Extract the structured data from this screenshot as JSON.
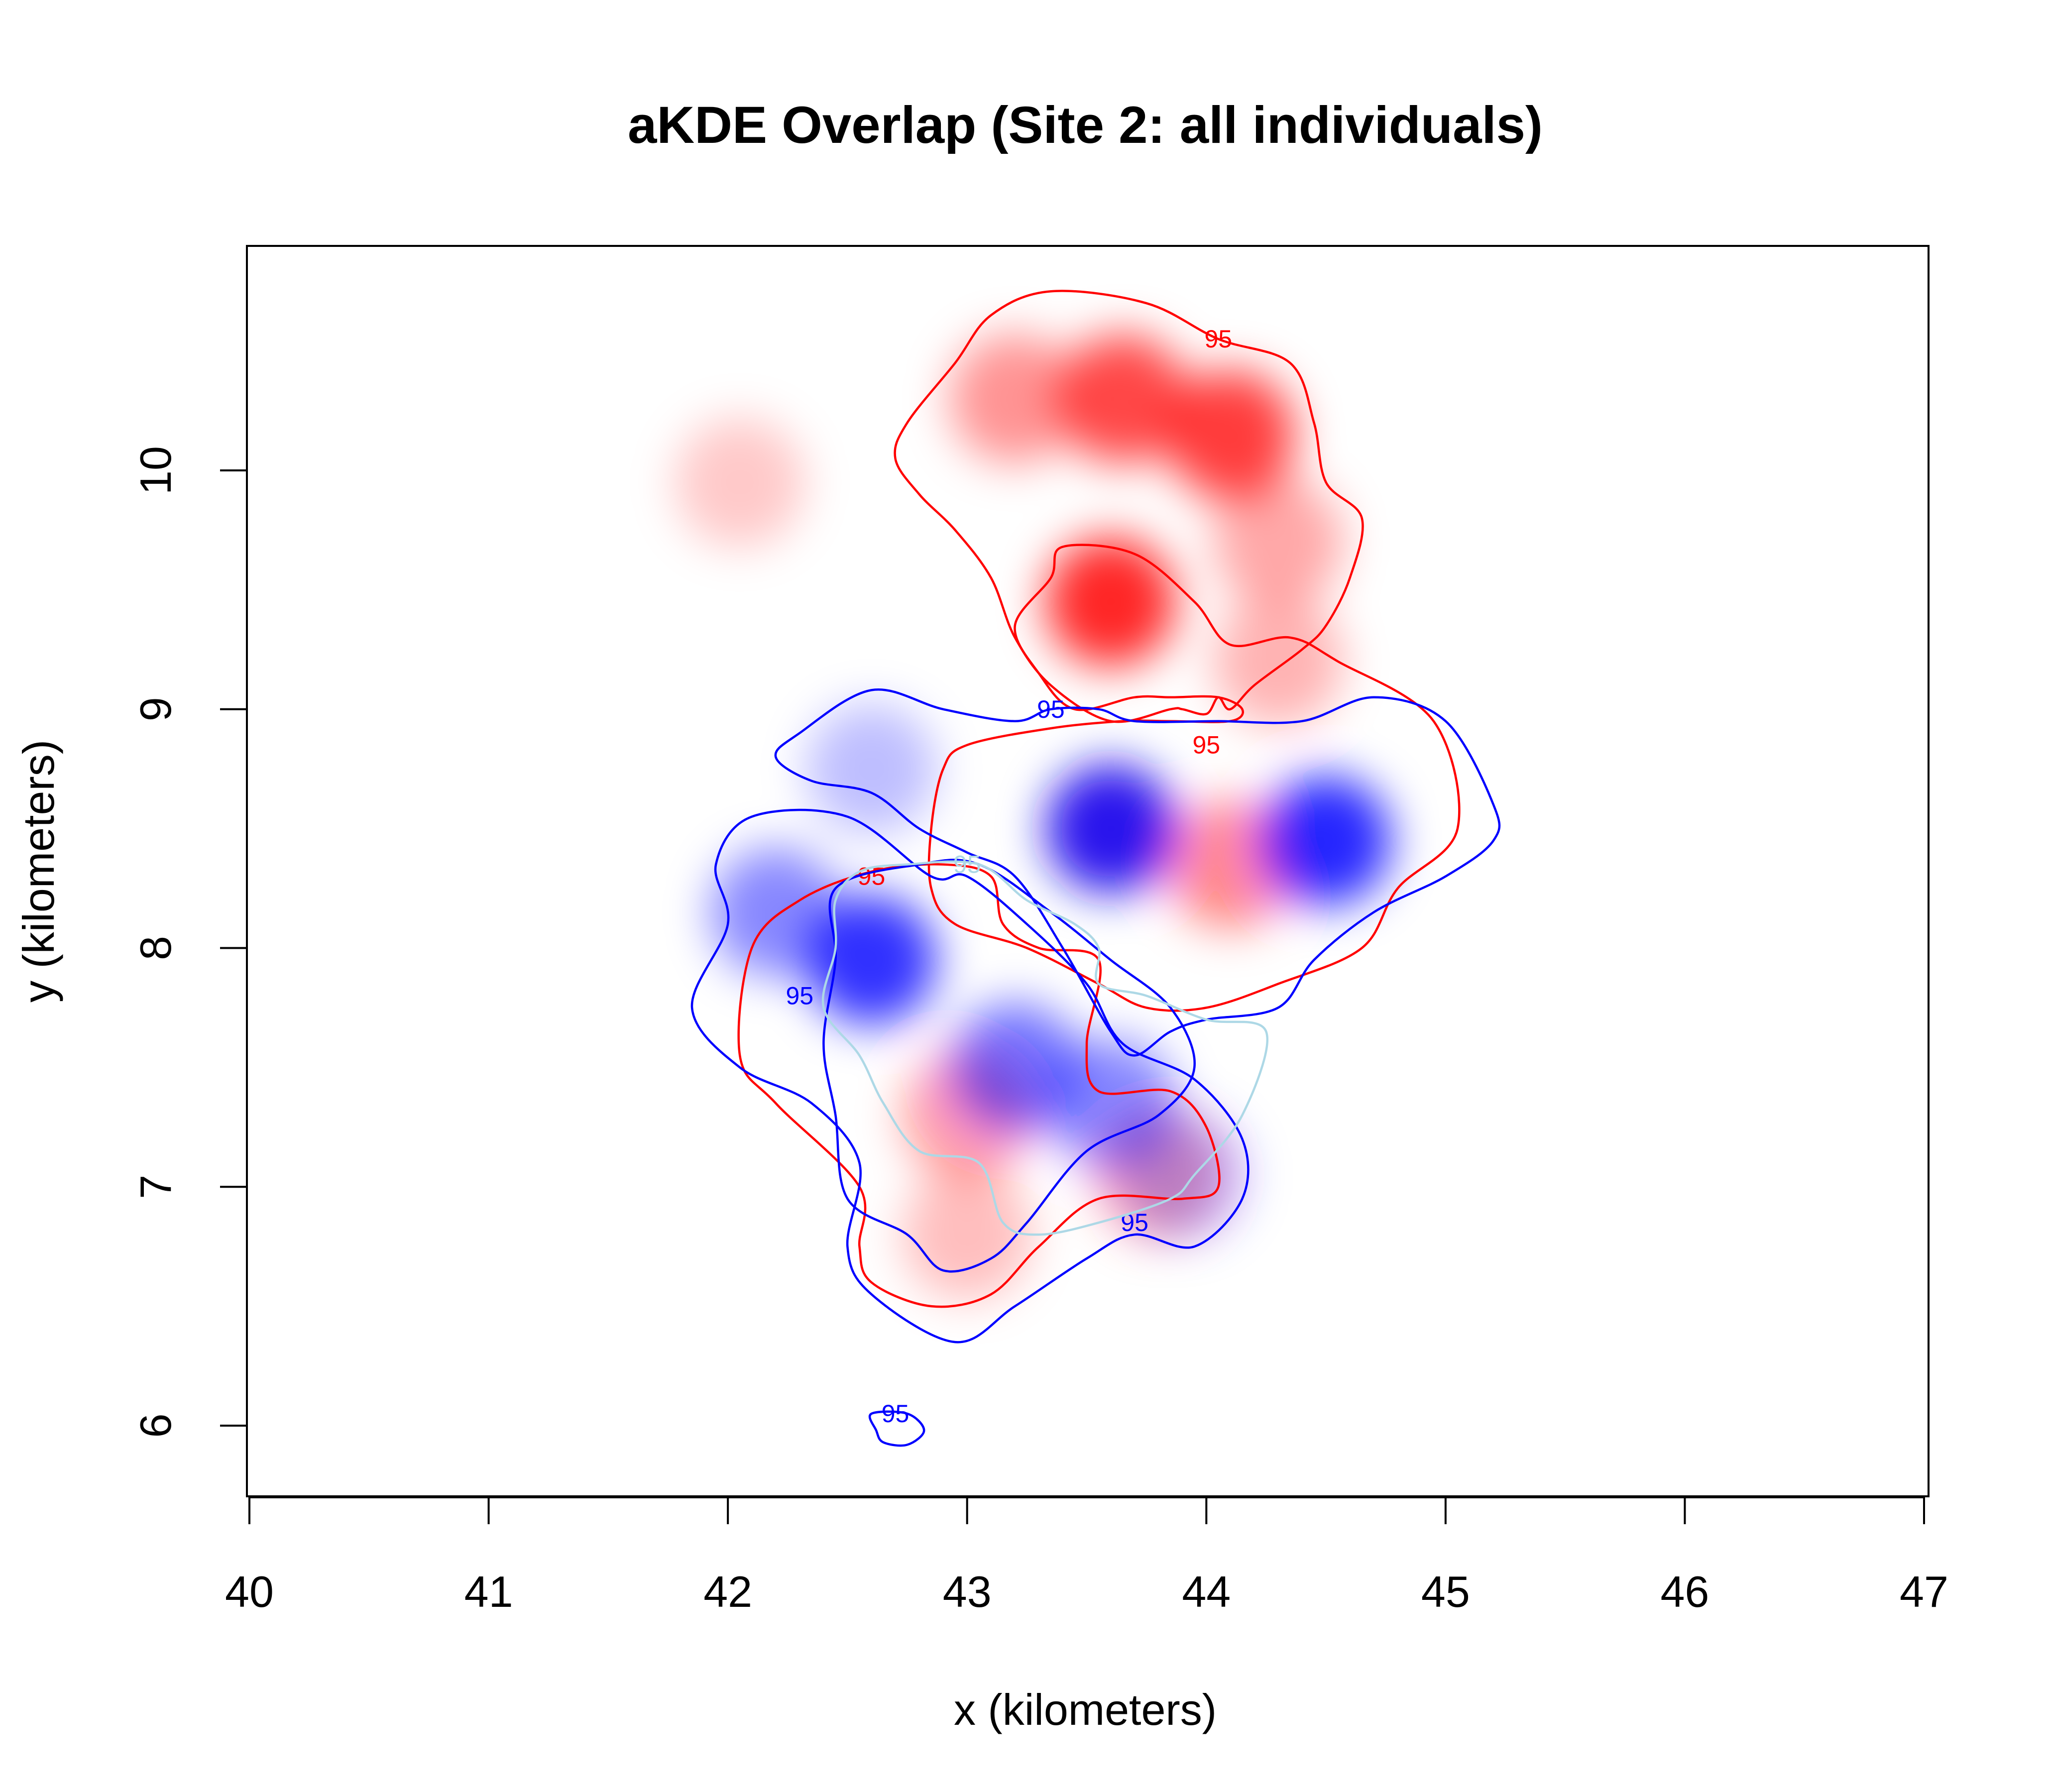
{
  "chart_data": {
    "type": "heatmap",
    "title": "aKDE Overlap (Site 2: all individuals)",
    "xlabel": "x (kilometers)",
    "ylabel": "y (kilometers)",
    "xlim": [
      40,
      47
    ],
    "ylim": [
      5.7,
      10.9
    ],
    "xticks": [
      40,
      41,
      42,
      43,
      44,
      45,
      46,
      47
    ],
    "yticks": [
      6,
      7,
      8,
      9,
      10
    ],
    "grid": false,
    "legend": "none",
    "colors": {
      "red": "#ff0000",
      "blue": "#0000ff",
      "lightblue": "#add8e6"
    },
    "density_blobs": [
      {
        "color": "red",
        "x": 43.65,
        "y": 10.3,
        "strength": 0.85
      },
      {
        "color": "red",
        "x": 44.1,
        "y": 10.15,
        "strength": 0.9
      },
      {
        "color": "red",
        "x": 43.2,
        "y": 10.3,
        "strength": 0.5
      },
      {
        "color": "red",
        "x": 43.6,
        "y": 9.45,
        "strength": 1.0
      },
      {
        "color": "red",
        "x": 42.05,
        "y": 9.95,
        "strength": 0.25
      },
      {
        "color": "red",
        "x": 44.3,
        "y": 9.7,
        "strength": 0.4
      },
      {
        "color": "red",
        "x": 44.3,
        "y": 9.2,
        "strength": 0.35
      },
      {
        "color": "red",
        "x": 43.6,
        "y": 8.5,
        "strength": 0.55
      },
      {
        "color": "red",
        "x": 44.1,
        "y": 8.35,
        "strength": 0.55
      },
      {
        "color": "red",
        "x": 43.0,
        "y": 7.3,
        "strength": 0.45
      },
      {
        "color": "red",
        "x": 43.8,
        "y": 7.05,
        "strength": 0.4
      },
      {
        "color": "red",
        "x": 43.0,
        "y": 6.8,
        "strength": 0.3
      },
      {
        "color": "blue",
        "x": 43.6,
        "y": 8.5,
        "strength": 1.0
      },
      {
        "color": "blue",
        "x": 44.5,
        "y": 8.45,
        "strength": 1.0
      },
      {
        "color": "blue",
        "x": 42.6,
        "y": 7.95,
        "strength": 0.95
      },
      {
        "color": "blue",
        "x": 42.2,
        "y": 8.15,
        "strength": 0.55
      },
      {
        "color": "blue",
        "x": 43.2,
        "y": 7.5,
        "strength": 0.65
      },
      {
        "color": "blue",
        "x": 43.6,
        "y": 7.35,
        "strength": 0.55
      },
      {
        "color": "blue",
        "x": 42.6,
        "y": 8.75,
        "strength": 0.3
      },
      {
        "color": "blue",
        "x": 43.9,
        "y": 7.05,
        "strength": 0.3
      }
    ],
    "contours": [
      {
        "color": "red",
        "label": "95",
        "label_at": [
          44.05,
          10.55
        ],
        "points": [
          [
            43.35,
            10.75
          ],
          [
            43.75,
            10.7
          ],
          [
            44.05,
            10.55
          ],
          [
            44.35,
            10.45
          ],
          [
            44.45,
            10.2
          ],
          [
            44.5,
            9.95
          ],
          [
            44.65,
            9.8
          ],
          [
            44.6,
            9.55
          ],
          [
            44.5,
            9.35
          ],
          [
            44.4,
            9.25
          ],
          [
            44.2,
            9.1
          ],
          [
            44.1,
            9.0
          ],
          [
            44.05,
            9.05
          ],
          [
            44.0,
            8.98
          ],
          [
            43.9,
            9.0
          ],
          [
            43.85,
            9.0
          ],
          [
            43.6,
            8.95
          ],
          [
            43.35,
            9.1
          ],
          [
            43.2,
            9.3
          ],
          [
            43.1,
            9.55
          ],
          [
            42.95,
            9.75
          ],
          [
            42.8,
            9.9
          ],
          [
            42.7,
            10.05
          ],
          [
            42.75,
            10.2
          ],
          [
            42.95,
            10.45
          ],
          [
            43.1,
            10.65
          ]
        ]
      },
      {
        "color": "red",
        "label": "95",
        "label_at": [
          44.0,
          8.85
        ],
        "points": [
          [
            43.35,
            9.55
          ],
          [
            43.4,
            9.68
          ],
          [
            43.7,
            9.65
          ],
          [
            43.95,
            9.45
          ],
          [
            44.1,
            9.27
          ],
          [
            44.35,
            9.3
          ],
          [
            44.55,
            9.2
          ],
          [
            44.95,
            8.95
          ],
          [
            45.05,
            8.5
          ],
          [
            44.8,
            8.25
          ],
          [
            44.65,
            8.0
          ],
          [
            44.3,
            7.85
          ],
          [
            44.0,
            7.75
          ],
          [
            43.75,
            7.75
          ],
          [
            43.55,
            7.85
          ],
          [
            43.25,
            8.0
          ],
          [
            42.95,
            8.1
          ],
          [
            42.85,
            8.25
          ],
          [
            42.85,
            8.5
          ],
          [
            42.9,
            8.75
          ],
          [
            43.0,
            8.85
          ],
          [
            43.35,
            8.92
          ],
          [
            43.65,
            8.95
          ],
          [
            43.85,
            8.95
          ],
          [
            44.1,
            8.95
          ],
          [
            44.15,
            9.0
          ],
          [
            44.05,
            9.05
          ],
          [
            43.85,
            9.05
          ],
          [
            43.7,
            9.05
          ],
          [
            43.45,
            9.0
          ],
          [
            43.3,
            9.15
          ],
          [
            43.2,
            9.35
          ]
        ]
      },
      {
        "color": "red",
        "label": "95",
        "label_at": [
          42.6,
          8.3
        ],
        "points": [
          [
            42.6,
            8.32
          ],
          [
            42.9,
            8.35
          ],
          [
            43.1,
            8.3
          ],
          [
            43.15,
            8.1
          ],
          [
            43.3,
            8.0
          ],
          [
            43.55,
            7.95
          ],
          [
            43.5,
            7.6
          ],
          [
            43.55,
            7.4
          ],
          [
            43.85,
            7.4
          ],
          [
            44.0,
            7.25
          ],
          [
            44.05,
            7.0
          ],
          [
            43.9,
            6.95
          ],
          [
            43.55,
            6.95
          ],
          [
            43.3,
            6.75
          ],
          [
            43.1,
            6.55
          ],
          [
            42.85,
            6.5
          ],
          [
            42.6,
            6.6
          ],
          [
            42.55,
            6.75
          ],
          [
            42.55,
            7.0
          ],
          [
            42.2,
            7.35
          ],
          [
            42.05,
            7.55
          ],
          [
            42.1,
            8.0
          ],
          [
            42.3,
            8.2
          ]
        ]
      },
      {
        "color": "blue",
        "label": "95",
        "label_at": [
          43.35,
          9.0
        ],
        "points": [
          [
            42.3,
            8.9
          ],
          [
            42.6,
            9.08
          ],
          [
            42.9,
            9.0
          ],
          [
            43.2,
            8.95
          ],
          [
            43.35,
            9.0
          ],
          [
            43.55,
            9.0
          ],
          [
            43.7,
            8.95
          ],
          [
            44.05,
            8.95
          ],
          [
            44.4,
            8.95
          ],
          [
            44.7,
            9.05
          ],
          [
            45.0,
            8.95
          ],
          [
            45.2,
            8.6
          ],
          [
            45.2,
            8.45
          ],
          [
            45.0,
            8.3
          ],
          [
            44.7,
            8.15
          ],
          [
            44.45,
            7.95
          ],
          [
            44.3,
            7.75
          ],
          [
            44.0,
            7.7
          ],
          [
            43.85,
            7.65
          ],
          [
            43.7,
            7.55
          ],
          [
            43.6,
            7.65
          ],
          [
            43.4,
            8.0
          ],
          [
            43.2,
            8.3
          ],
          [
            43.0,
            8.4
          ],
          [
            42.8,
            8.5
          ],
          [
            42.6,
            8.65
          ],
          [
            42.35,
            8.7
          ],
          [
            42.2,
            8.8
          ]
        ]
      },
      {
        "color": "blue",
        "label": "95",
        "label_at": [
          42.3,
          7.8
        ],
        "points": [
          [
            42.1,
            8.55
          ],
          [
            42.5,
            8.55
          ],
          [
            42.85,
            8.3
          ],
          [
            43.0,
            8.3
          ],
          [
            43.25,
            8.1
          ],
          [
            43.5,
            7.85
          ],
          [
            43.65,
            7.6
          ],
          [
            43.95,
            7.45
          ],
          [
            44.15,
            7.2
          ],
          [
            44.15,
            6.95
          ],
          [
            43.95,
            6.75
          ],
          [
            43.7,
            6.8
          ],
          [
            43.5,
            6.7
          ],
          [
            43.2,
            6.5
          ],
          [
            42.95,
            6.35
          ],
          [
            42.6,
            6.55
          ],
          [
            42.5,
            6.75
          ],
          [
            42.55,
            7.1
          ],
          [
            42.35,
            7.35
          ],
          [
            42.05,
            7.5
          ],
          [
            41.85,
            7.75
          ],
          [
            42.0,
            8.1
          ],
          [
            41.95,
            8.35
          ]
        ]
      },
      {
        "color": "blue",
        "label": "95",
        "label_at": [
          43.7,
          6.85
        ],
        "points": [
          [
            42.45,
            8.25
          ],
          [
            42.8,
            8.35
          ],
          [
            43.05,
            8.35
          ],
          [
            43.35,
            8.15
          ],
          [
            43.6,
            7.95
          ],
          [
            43.85,
            7.75
          ],
          [
            43.95,
            7.5
          ],
          [
            43.8,
            7.3
          ],
          [
            43.5,
            7.15
          ],
          [
            43.25,
            6.85
          ],
          [
            43.1,
            6.7
          ],
          [
            42.9,
            6.65
          ],
          [
            42.75,
            6.8
          ],
          [
            42.5,
            6.95
          ],
          [
            42.45,
            7.3
          ],
          [
            42.4,
            7.6
          ],
          [
            42.45,
            7.95
          ]
        ]
      },
      {
        "color": "blue",
        "label": "95",
        "label_at": [
          42.7,
          6.05
        ],
        "points": [
          [
            42.6,
            6.05
          ],
          [
            42.75,
            6.05
          ],
          [
            42.82,
            5.98
          ],
          [
            42.75,
            5.92
          ],
          [
            42.65,
            5.93
          ],
          [
            42.62,
            5.98
          ]
        ]
      },
      {
        "color": "lightblue",
        "label": "95",
        "label_at": [
          43.0,
          8.35
        ],
        "points": [
          [
            42.55,
            8.32
          ],
          [
            42.75,
            8.35
          ],
          [
            43.05,
            8.35
          ],
          [
            43.25,
            8.2
          ],
          [
            43.45,
            8.1
          ],
          [
            43.55,
            8.0
          ],
          [
            43.55,
            7.85
          ],
          [
            43.75,
            7.8
          ],
          [
            44.0,
            7.7
          ],
          [
            44.25,
            7.65
          ],
          [
            44.15,
            7.3
          ],
          [
            43.95,
            7.05
          ],
          [
            43.85,
            6.95
          ],
          [
            43.55,
            6.85
          ],
          [
            43.3,
            6.8
          ],
          [
            43.15,
            6.85
          ],
          [
            43.05,
            7.1
          ],
          [
            42.8,
            7.15
          ],
          [
            42.65,
            7.35
          ],
          [
            42.55,
            7.55
          ],
          [
            42.4,
            7.75
          ],
          [
            42.45,
            8.0
          ],
          [
            42.45,
            8.2
          ]
        ]
      }
    ]
  }
}
